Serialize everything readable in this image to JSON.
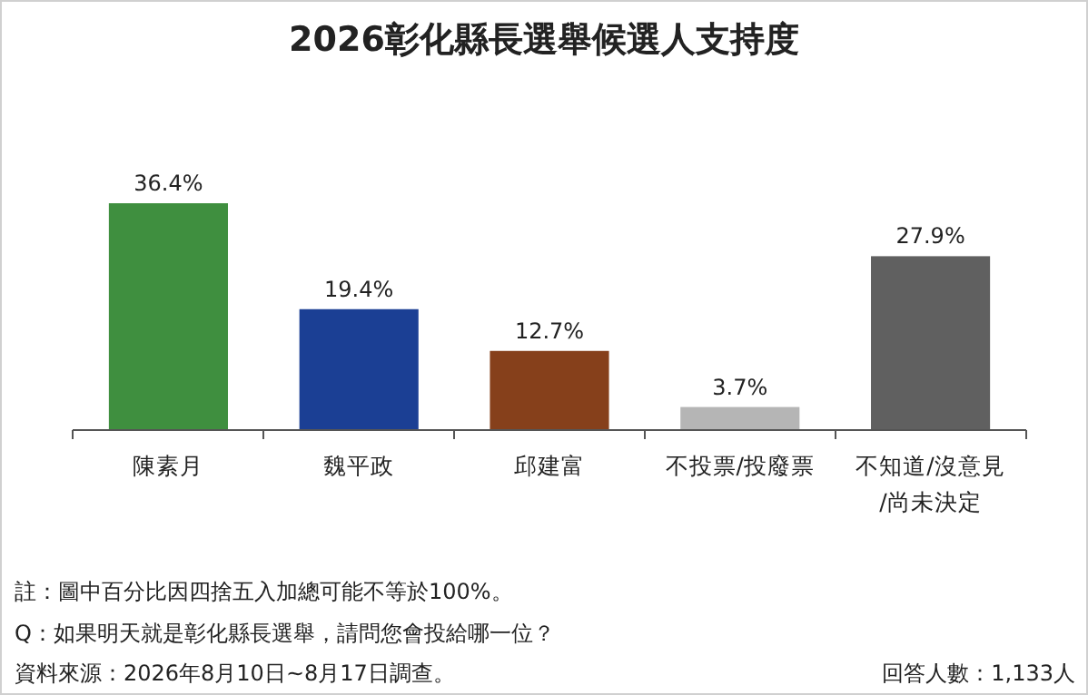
{
  "chart_data": {
    "type": "bar",
    "title": "2026彰化縣長選舉候選人支持度",
    "categories": [
      "陳素月",
      "魏平政",
      "邱建富",
      "不投票/投廢票",
      "不知道/沒意見/尚未決定"
    ],
    "values": [
      36.4,
      19.4,
      12.7,
      3.7,
      27.9
    ],
    "colors": [
      "#3f8f3f",
      "#1b3f94",
      "#86401b",
      "#b5b5b5",
      "#606060"
    ],
    "value_labels": [
      "36.4%",
      "19.4%",
      "12.7%",
      "3.7%",
      "27.9%"
    ],
    "annotations": [
      "註：圖中百分比因四捨五入加總可能不等於100%。",
      "Q：如果明天就是彰化縣長選舉，請問您會投給哪一位？",
      "資料來源：2026年8月10日~8月17日調查。",
      "回答人數：1,133人"
    ]
  }
}
